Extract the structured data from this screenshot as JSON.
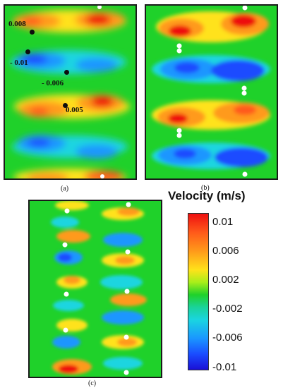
{
  "panels": [
    {
      "label": "(a)"
    },
    {
      "label": "(b)"
    },
    {
      "label": "(c)"
    }
  ],
  "probes": [
    "0.008",
    "- 0.01",
    "- 0.006",
    "0.005"
  ],
  "legend": {
    "title": "Velocity (m/s)",
    "ticks": [
      "0.01",
      "0.006",
      "0.002",
      "-0.002",
      "-0.006",
      "-0.01"
    ],
    "colors": [
      "#ee1010",
      "#ff9a1a",
      "#ffe21a",
      "#1fd12a",
      "#1ad5e0",
      "#1a4cff",
      "#1a0fd6"
    ]
  }
}
